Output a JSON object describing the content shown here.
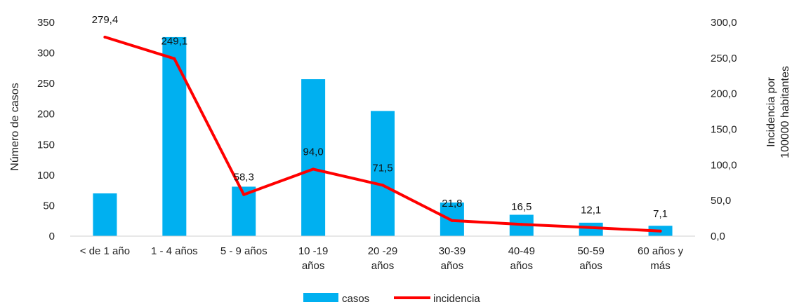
{
  "chart_data": {
    "type": "bar",
    "categories": [
      [
        "< de 1 año"
      ],
      [
        "1 - 4 años"
      ],
      [
        "5 - 9 años"
      ],
      [
        "10 -19",
        "años"
      ],
      [
        "20 -29",
        "años"
      ],
      [
        "30-39",
        "años"
      ],
      [
        "40-49",
        "años"
      ],
      [
        "50-59",
        "años"
      ],
      [
        "60 años y",
        "más"
      ]
    ],
    "series": [
      {
        "name": "casos",
        "type": "bar",
        "axis": "left",
        "color": "#00B0F0",
        "values": [
          70,
          326,
          81,
          257,
          205,
          55,
          35,
          22,
          17
        ]
      },
      {
        "name": "incidencia",
        "type": "line",
        "axis": "right",
        "color": "#FF0000",
        "values": [
          279.4,
          249.1,
          58.3,
          94.0,
          71.5,
          21.8,
          16.5,
          12.1,
          7.1
        ],
        "labels": [
          "279,4",
          "249,1",
          "58,3",
          "94,0",
          "71,5",
          "21,8",
          "16,5",
          "12,1",
          "7,1"
        ]
      }
    ],
    "y_left": {
      "label": "Número de casos",
      "ylim": [
        0,
        350
      ],
      "ticks": [
        "0",
        "50",
        "100",
        "150",
        "200",
        "250",
        "300",
        "350"
      ]
    },
    "y_right": {
      "label_lines": [
        "Incidencia por",
        "100000 habitantes"
      ],
      "ylim": [
        0,
        300
      ],
      "ticks": [
        "0,0",
        "50,0",
        "100,0",
        "150,0",
        "200,0",
        "250,0",
        "300,0"
      ]
    },
    "grid": false,
    "legend": {
      "position": "bottom",
      "items": [
        "casos",
        "incidencia"
      ]
    }
  }
}
